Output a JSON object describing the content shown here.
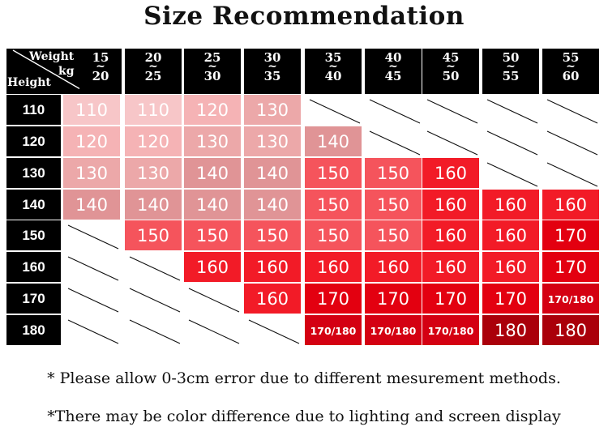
{
  "title": "Size Recommendation",
  "corner": {
    "weight_label": "Weight",
    "unit_label": "kg",
    "height_label": "Height"
  },
  "weights": [
    {
      "top": "15",
      "tilde": "~",
      "bottom": "20"
    },
    {
      "top": "20",
      "tilde": "~",
      "bottom": "25"
    },
    {
      "top": "25",
      "tilde": "~",
      "bottom": "30"
    },
    {
      "top": "30",
      "tilde": "~",
      "bottom": "35"
    },
    {
      "top": "35",
      "tilde": "~",
      "bottom": "40"
    },
    {
      "top": "40",
      "tilde": "~",
      "bottom": "45"
    },
    {
      "top": "45",
      "tilde": "~",
      "bottom": "50"
    },
    {
      "top": "50",
      "tilde": "~",
      "bottom": "55"
    },
    {
      "top": "55",
      "tilde": "~",
      "bottom": "60"
    }
  ],
  "heights": [
    "110",
    "120",
    "130",
    "140",
    "150",
    "160",
    "170",
    "180"
  ],
  "rows": [
    [
      "110",
      "110",
      "120",
      "130",
      "",
      "",
      "",
      "",
      ""
    ],
    [
      "120",
      "120",
      "130",
      "130",
      "140",
      "",
      "",
      "",
      ""
    ],
    [
      "130",
      "130",
      "140",
      "140",
      "150",
      "150",
      "160",
      "",
      ""
    ],
    [
      "140",
      "140",
      "140",
      "140",
      "150",
      "150",
      "160",
      "160",
      "160"
    ],
    [
      "",
      "150",
      "150",
      "150",
      "150",
      "150",
      "160",
      "160",
      "170"
    ],
    [
      "",
      "",
      "160",
      "160",
      "160",
      "160",
      "160",
      "160",
      "170"
    ],
    [
      "",
      "",
      "",
      "160",
      "170",
      "170",
      "170",
      "170",
      "170/180"
    ],
    [
      "",
      "",
      "",
      "",
      "170/180",
      "170/180",
      "170/180",
      "180",
      "180"
    ]
  ],
  "colors": {
    "110": "#f7c6c8",
    "120": "#f5b3b5",
    "130": "#eca8a9",
    "140": "#e09496",
    "150": "#f5545c",
    "160": "#f21b27",
    "170": "#e30010",
    "170/180": "#d40012",
    "180": "#aa000a"
  },
  "notes": [
    "* Please allow 0-3cm error due to different mesurement methods.",
    "*There may be color difference due to lighting and screen display"
  ]
}
